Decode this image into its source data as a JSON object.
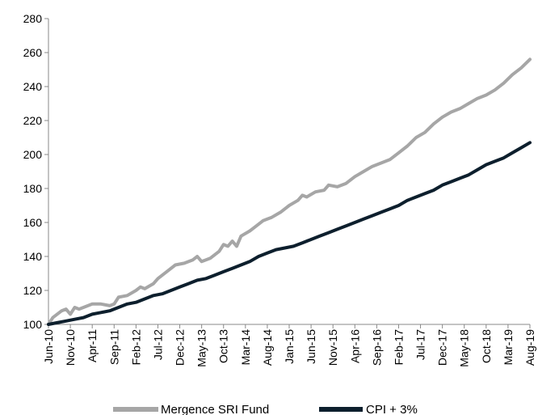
{
  "chart_data": {
    "type": "line",
    "title": "",
    "xlabel": "",
    "ylabel": "",
    "ylim": [
      100,
      280
    ],
    "yticks": [
      100,
      120,
      140,
      160,
      180,
      200,
      220,
      240,
      260,
      280
    ],
    "x_start": "Jun-10",
    "x_end": "Aug-19",
    "x_tick_labels": [
      "Jun-10",
      "Nov-10",
      "Apr-11",
      "Sep-11",
      "Feb-12",
      "Jul-12",
      "Dec-12",
      "May-13",
      "Oct-13",
      "Mar-14",
      "Aug-14",
      "Jan-15",
      "Jun-15",
      "Nov-15",
      "Apr-16",
      "Sep-16",
      "Feb-17",
      "Jul-17",
      "Dec-17",
      "May-18",
      "Oct-18",
      "Mar-19",
      "Aug-19"
    ],
    "grid": false,
    "legend_position": "bottom",
    "series": [
      {
        "name": "Mergence SRI Fund",
        "color": "#a6a6a6",
        "points": [
          [
            "Jun-10",
            100
          ],
          [
            "Jul-10",
            104
          ],
          [
            "Sep-10",
            108
          ],
          [
            "Oct-10",
            109
          ],
          [
            "Nov-10",
            106
          ],
          [
            "Dec-10",
            110
          ],
          [
            "Jan-11",
            109
          ],
          [
            "Mar-11",
            111
          ],
          [
            "Apr-11",
            112
          ],
          [
            "Jun-11",
            112
          ],
          [
            "Aug-11",
            111
          ],
          [
            "Sep-11",
            112
          ],
          [
            "Oct-11",
            116
          ],
          [
            "Dec-11",
            117
          ],
          [
            "Feb-12",
            120
          ],
          [
            "Mar-12",
            122
          ],
          [
            "Apr-12",
            121
          ],
          [
            "Jun-12",
            124
          ],
          [
            "Jul-12",
            127
          ],
          [
            "Sep-12",
            131
          ],
          [
            "Nov-12",
            135
          ],
          [
            "Jan-13",
            136
          ],
          [
            "Mar-13",
            138
          ],
          [
            "Apr-13",
            140
          ],
          [
            "May-13",
            137
          ],
          [
            "Jul-13",
            139
          ],
          [
            "Sep-13",
            143
          ],
          [
            "Oct-13",
            147
          ],
          [
            "Nov-13",
            146
          ],
          [
            "Dec-13",
            149
          ],
          [
            "Jan-14",
            146
          ],
          [
            "Feb-14",
            152
          ],
          [
            "Apr-14",
            155
          ],
          [
            "May-14",
            157
          ],
          [
            "Jul-14",
            161
          ],
          [
            "Aug-14",
            162
          ],
          [
            "Sep-14",
            163
          ],
          [
            "Nov-14",
            166
          ],
          [
            "Jan-15",
            170
          ],
          [
            "Mar-15",
            173
          ],
          [
            "Apr-15",
            176
          ],
          [
            "May-15",
            175
          ],
          [
            "Jul-15",
            178
          ],
          [
            "Sep-15",
            179
          ],
          [
            "Oct-15",
            182
          ],
          [
            "Dec-15",
            181
          ],
          [
            "Feb-16",
            183
          ],
          [
            "Apr-16",
            187
          ],
          [
            "Jun-16",
            190
          ],
          [
            "Aug-16",
            193
          ],
          [
            "Oct-16",
            195
          ],
          [
            "Dec-16",
            197
          ],
          [
            "Feb-17",
            201
          ],
          [
            "Apr-17",
            205
          ],
          [
            "Jun-17",
            210
          ],
          [
            "Aug-17",
            213
          ],
          [
            "Oct-17",
            218
          ],
          [
            "Dec-17",
            222
          ],
          [
            "Feb-18",
            225
          ],
          [
            "Apr-18",
            227
          ],
          [
            "Jun-18",
            230
          ],
          [
            "Aug-18",
            233
          ],
          [
            "Oct-18",
            235
          ],
          [
            "Dec-18",
            238
          ],
          [
            "Feb-19",
            242
          ],
          [
            "Apr-19",
            247
          ],
          [
            "Jun-19",
            251
          ],
          [
            "Aug-19",
            256
          ]
        ]
      },
      {
        "name": "CPI + 3%",
        "color": "#0d1f2d",
        "points": [
          [
            "Jun-10",
            100
          ],
          [
            "Aug-10",
            101
          ],
          [
            "Oct-10",
            102
          ],
          [
            "Dec-10",
            103
          ],
          [
            "Feb-11",
            104
          ],
          [
            "Apr-11",
            106
          ],
          [
            "Jun-11",
            107
          ],
          [
            "Aug-11",
            108
          ],
          [
            "Oct-11",
            110
          ],
          [
            "Dec-11",
            112
          ],
          [
            "Feb-12",
            113
          ],
          [
            "Apr-12",
            115
          ],
          [
            "Jun-12",
            117
          ],
          [
            "Aug-12",
            118
          ],
          [
            "Oct-12",
            120
          ],
          [
            "Dec-12",
            122
          ],
          [
            "Feb-13",
            124
          ],
          [
            "Apr-13",
            126
          ],
          [
            "Jun-13",
            127
          ],
          [
            "Aug-13",
            129
          ],
          [
            "Oct-13",
            131
          ],
          [
            "Dec-13",
            133
          ],
          [
            "Feb-14",
            135
          ],
          [
            "Apr-14",
            137
          ],
          [
            "Jun-14",
            140
          ],
          [
            "Aug-14",
            142
          ],
          [
            "Oct-14",
            144
          ],
          [
            "Dec-14",
            145
          ],
          [
            "Feb-15",
            146
          ],
          [
            "Apr-15",
            148
          ],
          [
            "Jun-15",
            150
          ],
          [
            "Aug-15",
            152
          ],
          [
            "Oct-15",
            154
          ],
          [
            "Dec-15",
            156
          ],
          [
            "Feb-16",
            158
          ],
          [
            "Apr-16",
            160
          ],
          [
            "Jun-16",
            162
          ],
          [
            "Aug-16",
            164
          ],
          [
            "Oct-16",
            166
          ],
          [
            "Dec-16",
            168
          ],
          [
            "Feb-17",
            170
          ],
          [
            "Apr-17",
            173
          ],
          [
            "Jun-17",
            175
          ],
          [
            "Aug-17",
            177
          ],
          [
            "Oct-17",
            179
          ],
          [
            "Dec-17",
            182
          ],
          [
            "Feb-18",
            184
          ],
          [
            "Apr-18",
            186
          ],
          [
            "Jun-18",
            188
          ],
          [
            "Aug-18",
            191
          ],
          [
            "Oct-18",
            194
          ],
          [
            "Dec-18",
            196
          ],
          [
            "Feb-19",
            198
          ],
          [
            "Apr-19",
            201
          ],
          [
            "Jun-19",
            204
          ],
          [
            "Aug-19",
            207
          ]
        ]
      }
    ]
  }
}
